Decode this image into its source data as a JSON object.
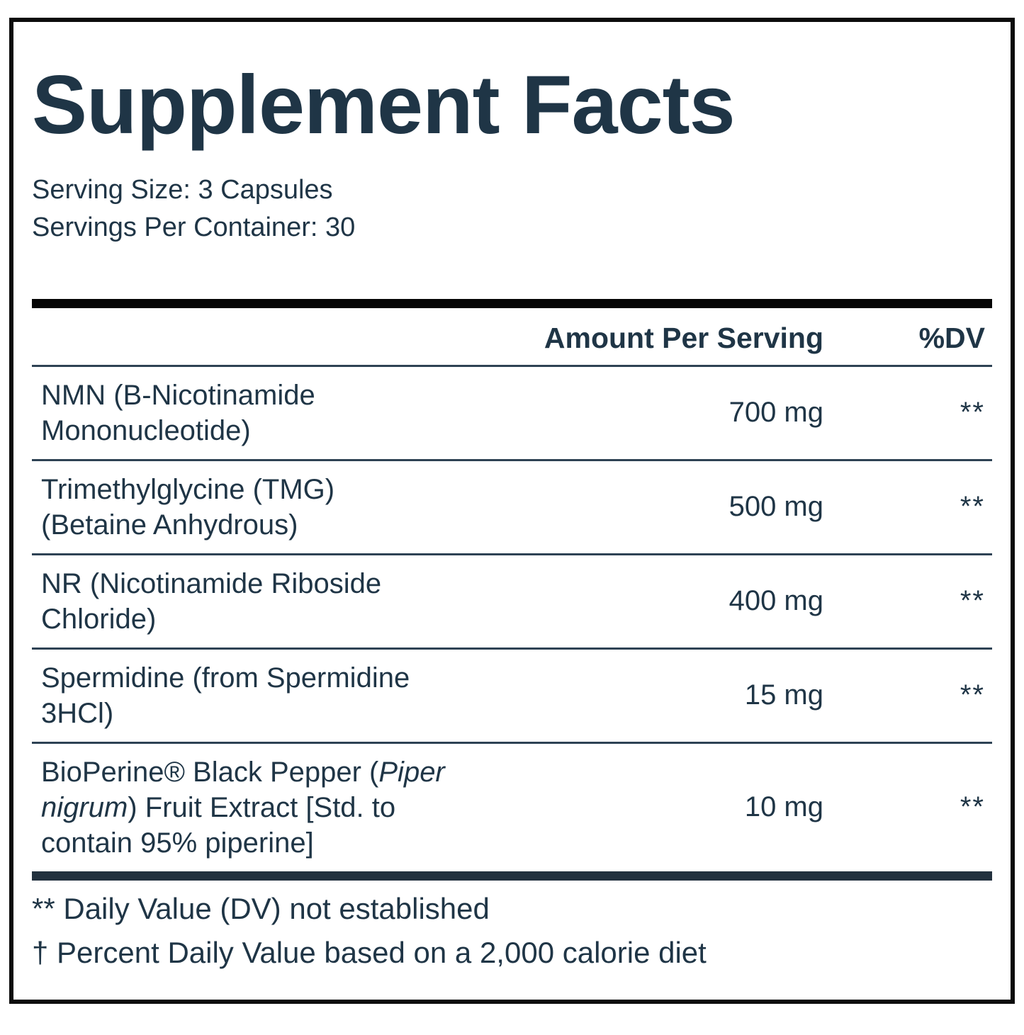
{
  "colors": {
    "text": "#1f3546",
    "border": "#0c0c0c",
    "top_bar": "#050505",
    "bottom_bar": "#22313e",
    "separator": "#2e4254",
    "background": "#ffffff"
  },
  "label": {
    "title": "Supplement Facts",
    "serving_size": "Serving Size: 3 Capsules",
    "servings_per_container": "Servings Per Container: 30",
    "columns": {
      "amount": "Amount Per Serving",
      "dv": "%DV"
    },
    "rows": [
      {
        "name_lines": [
          [
            {
              "text": "NMN (B-Nicotinamide",
              "italic": false
            }
          ],
          [
            {
              "text": "Mononucleotide)",
              "italic": false
            }
          ]
        ],
        "amount": "700 mg",
        "dv": "**"
      },
      {
        "name_lines": [
          [
            {
              "text": "Trimethylglycine (TMG)",
              "italic": false
            }
          ],
          [
            {
              "text": "(Betaine Anhydrous)",
              "italic": false
            }
          ]
        ],
        "amount": "500 mg",
        "dv": "**"
      },
      {
        "name_lines": [
          [
            {
              "text": "NR (Nicotinamide Riboside",
              "italic": false
            }
          ],
          [
            {
              "text": "Chloride)",
              "italic": false
            }
          ]
        ],
        "amount": "400 mg",
        "dv": "**"
      },
      {
        "name_lines": [
          [
            {
              "text": "Spermidine (from Spermidine",
              "italic": false
            }
          ],
          [
            {
              "text": "3HCl)",
              "italic": false
            }
          ]
        ],
        "amount": "15 mg",
        "dv": "**"
      },
      {
        "name_lines": [
          [
            {
              "text": "BioPerine® Black Pepper (",
              "italic": false
            },
            {
              "text": "Piper",
              "italic": true
            }
          ],
          [
            {
              "text": "nigrum",
              "italic": true
            },
            {
              "text": ") Fruit Extract [Std. to",
              "italic": false
            }
          ],
          [
            {
              "text": "contain 95% piperine]",
              "italic": false
            }
          ]
        ],
        "amount": "10 mg",
        "dv": "**"
      }
    ],
    "footnotes": [
      "** Daily Value (DV) not established",
      "† Percent Daily Value based on a 2,000 calorie diet"
    ]
  }
}
